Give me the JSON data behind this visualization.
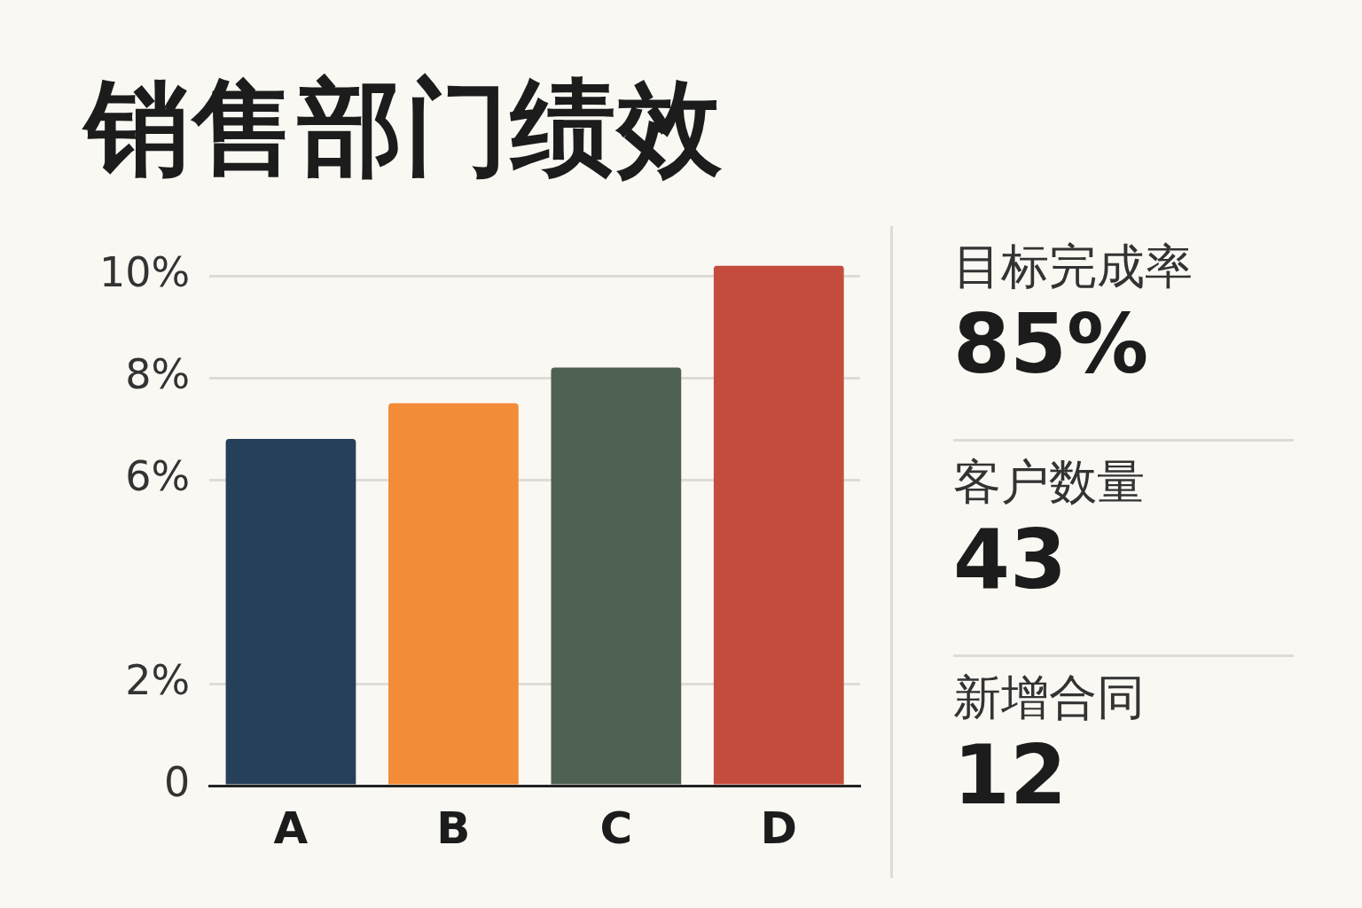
{
  "chart_data": [
    {
      "type": "bar",
      "title": "销售部门绩效",
      "categories": [
        "A",
        "B",
        "C",
        "D"
      ],
      "values": [
        6.8,
        7.5,
        8.2,
        10.2
      ],
      "colors": [
        "#263f5a",
        "#f28c38",
        "#4e6152",
        "#c44c3c"
      ],
      "ylim": [
        0,
        10.2
      ],
      "yticks": [
        0,
        {
          "value": 2,
          "label": "2%"
        },
        {
          "value": 6,
          "label": "6%"
        },
        {
          "value": 8,
          "label": "8%"
        },
        {
          "value": 10,
          "label": "10%"
        }
      ],
      "grid": "y",
      "legend": false
    },
    {
      "type": "other",
      "annotations": [
        "目标完成率",
        "85%",
        "客户数量",
        "43",
        "新增合同",
        "12"
      ]
    }
  ]
}
